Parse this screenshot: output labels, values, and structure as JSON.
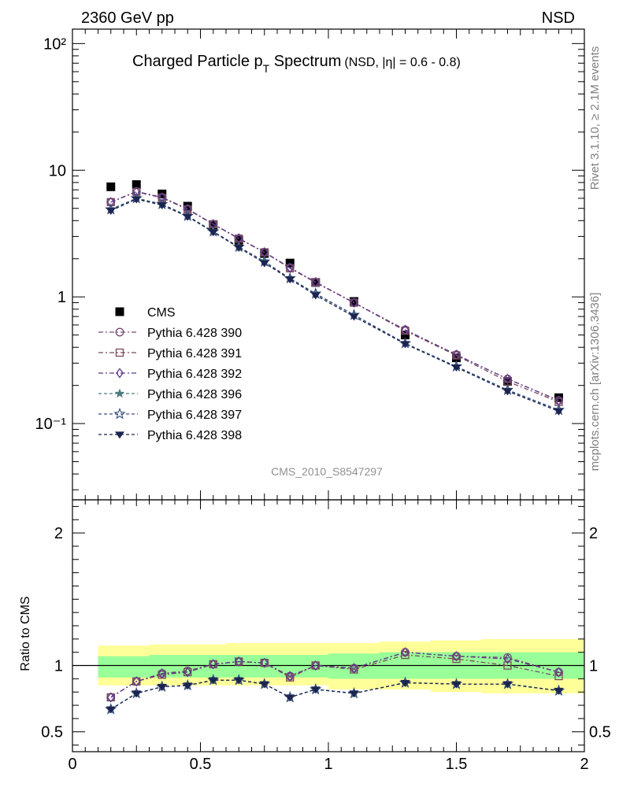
{
  "header": {
    "left": "2360 GeV pp",
    "right": "NSD"
  },
  "side_text": {
    "rivet": "Rivet 3.1.10, ≥ 2.1M events",
    "mcplots": "mcplots.cern.ch [arXiv:1306.3436]"
  },
  "chart_data": [
    {
      "type": "scatter",
      "title": "Charged Particle p",
      "title_sub": "T",
      "title_rest": " Spectrum",
      "title_note": "(NSD, |η| = 0.6 - 0.8)",
      "analysis_label": "CMS_2010_S8547297",
      "xlim": [
        0,
        2
      ],
      "ylim": [
        0.025,
        130
      ],
      "yscale": "log",
      "ytick_labels": [
        "10⁻¹",
        "1",
        "10",
        "10²"
      ],
      "legend_position": "middle-left",
      "x": [
        0.15,
        0.25,
        0.35,
        0.45,
        0.55,
        0.65,
        0.75,
        0.85,
        0.95,
        1.1,
        1.3,
        1.5,
        1.7,
        1.9
      ],
      "series": [
        {
          "name": "CMS",
          "color": "#000000",
          "marker": "square",
          "dash": "none",
          "values": [
            7.4,
            7.7,
            6.5,
            5.2,
            3.7,
            2.8,
            2.2,
            1.85,
            1.3,
            0.92,
            0.5,
            0.33,
            0.215,
            0.16
          ]
        },
        {
          "name": "Pythia 6.428 390",
          "color": "#7b4a78",
          "marker": "circle-open",
          "dash": "6,3,2,3",
          "values": [
            5.6,
            6.8,
            6.1,
            4.95,
            3.75,
            2.9,
            2.25,
            1.7,
            1.3,
            0.9,
            0.55,
            0.35,
            0.225,
            0.152
          ]
        },
        {
          "name": "Pythia 6.428 391",
          "color": "#7b4a58",
          "marker": "square-open",
          "dash": "6,3,2,3",
          "values": [
            5.6,
            6.75,
            6.05,
            4.9,
            3.75,
            2.88,
            2.25,
            1.68,
            1.3,
            0.9,
            0.54,
            0.345,
            0.215,
            0.148
          ]
        },
        {
          "name": "Pythia 6.428 392",
          "color": "#5e3a8c",
          "marker": "diamond-open",
          "dash": "6,3,2,3",
          "values": [
            5.6,
            6.75,
            6.1,
            4.95,
            3.75,
            2.9,
            2.25,
            1.7,
            1.31,
            0.9,
            0.55,
            0.35,
            0.225,
            0.152
          ]
        },
        {
          "name": "Pythia 6.428 396",
          "color": "#4d7b80",
          "marker": "star",
          "dash": "4,3",
          "values": [
            4.9,
            6.0,
            5.4,
            4.35,
            3.28,
            2.48,
            1.9,
            1.4,
            1.06,
            0.72,
            0.43,
            0.282,
            0.184,
            0.128
          ]
        },
        {
          "name": "Pythia 6.428 397",
          "color": "#3a4e7c",
          "marker": "star-open",
          "dash": "4,3",
          "values": [
            4.9,
            6.0,
            5.4,
            4.35,
            3.28,
            2.48,
            1.9,
            1.4,
            1.06,
            0.72,
            0.43,
            0.282,
            0.184,
            0.128
          ]
        },
        {
          "name": "Pythia 6.428 398",
          "color": "#1b2550",
          "marker": "triangle-down",
          "dash": "4,3",
          "values": [
            4.8,
            5.9,
            5.3,
            4.3,
            3.25,
            2.45,
            1.85,
            1.38,
            1.03,
            0.7,
            0.425,
            0.278,
            0.18,
            0.125
          ]
        }
      ]
    },
    {
      "type": "line",
      "ylabel": "Ratio to CMS",
      "xlim": [
        0,
        2
      ],
      "ylim": [
        0.35,
        2.25
      ],
      "xticks": [
        0,
        0.5,
        1,
        1.5,
        2
      ],
      "xtick_labels": [
        "0",
        "0.5",
        "1",
        "1.5",
        "2"
      ],
      "yticks": [
        0.5,
        1,
        2
      ],
      "ytick_labels": [
        "0.5",
        "1",
        "2"
      ],
      "reference_line": 1,
      "bands": {
        "edges": [
          0.1,
          0.2,
          0.3,
          0.4,
          0.5,
          0.6,
          0.7,
          0.8,
          0.9,
          1.0,
          1.2,
          1.4,
          1.6,
          1.8,
          2.0
        ],
        "yellow_color": "#ffff99",
        "green_color": "#99ff99",
        "yellow_lo": [
          0.85,
          0.85,
          0.85,
          0.85,
          0.85,
          0.85,
          0.85,
          0.85,
          0.85,
          0.82,
          0.82,
          0.8,
          0.79,
          0.79
        ],
        "yellow_hi": [
          1.15,
          1.15,
          1.16,
          1.16,
          1.16,
          1.17,
          1.17,
          1.17,
          1.17,
          1.17,
          1.18,
          1.19,
          1.2,
          1.2
        ],
        "green_lo": [
          0.91,
          0.91,
          0.91,
          0.91,
          0.91,
          0.91,
          0.91,
          0.91,
          0.91,
          0.9,
          0.9,
          0.9,
          0.9,
          0.9
        ],
        "green_hi": [
          1.07,
          1.07,
          1.08,
          1.08,
          1.08,
          1.08,
          1.08,
          1.08,
          1.08,
          1.09,
          1.1,
          1.1,
          1.1,
          1.1
        ]
      },
      "x": [
        0.15,
        0.25,
        0.35,
        0.45,
        0.55,
        0.65,
        0.75,
        0.85,
        0.95,
        1.1,
        1.3,
        1.5,
        1.7,
        1.9
      ],
      "series": [
        {
          "name": "Pythia 6.428 390",
          "values": [
            0.76,
            0.88,
            0.94,
            0.96,
            1.01,
            1.03,
            1.02,
            0.92,
            1.0,
            0.98,
            1.1,
            1.07,
            1.06,
            0.95
          ]
        },
        {
          "name": "Pythia 6.428 391",
          "values": [
            0.76,
            0.88,
            0.93,
            0.95,
            1.01,
            1.03,
            1.02,
            0.91,
            1.0,
            0.97,
            1.08,
            1.05,
            1.0,
            0.92
          ]
        },
        {
          "name": "Pythia 6.428 392",
          "values": [
            0.76,
            0.88,
            0.94,
            0.95,
            1.01,
            1.03,
            1.02,
            0.92,
            1.0,
            0.98,
            1.1,
            1.07,
            1.05,
            0.95
          ]
        },
        {
          "name": "Pythia 6.428 396",
          "values": [
            0.67,
            0.79,
            0.84,
            0.85,
            0.89,
            0.89,
            0.86,
            0.76,
            0.82,
            0.79,
            0.87,
            0.86,
            0.86,
            0.81
          ]
        },
        {
          "name": "Pythia 6.428 397",
          "values": [
            0.67,
            0.79,
            0.84,
            0.85,
            0.89,
            0.89,
            0.86,
            0.76,
            0.82,
            0.79,
            0.87,
            0.86,
            0.86,
            0.81
          ]
        },
        {
          "name": "Pythia 6.428 398",
          "values": [
            0.67,
            0.79,
            0.84,
            0.85,
            0.89,
            0.89,
            0.86,
            0.76,
            0.82,
            0.79,
            0.87,
            0.86,
            0.86,
            0.81
          ]
        }
      ]
    }
  ]
}
